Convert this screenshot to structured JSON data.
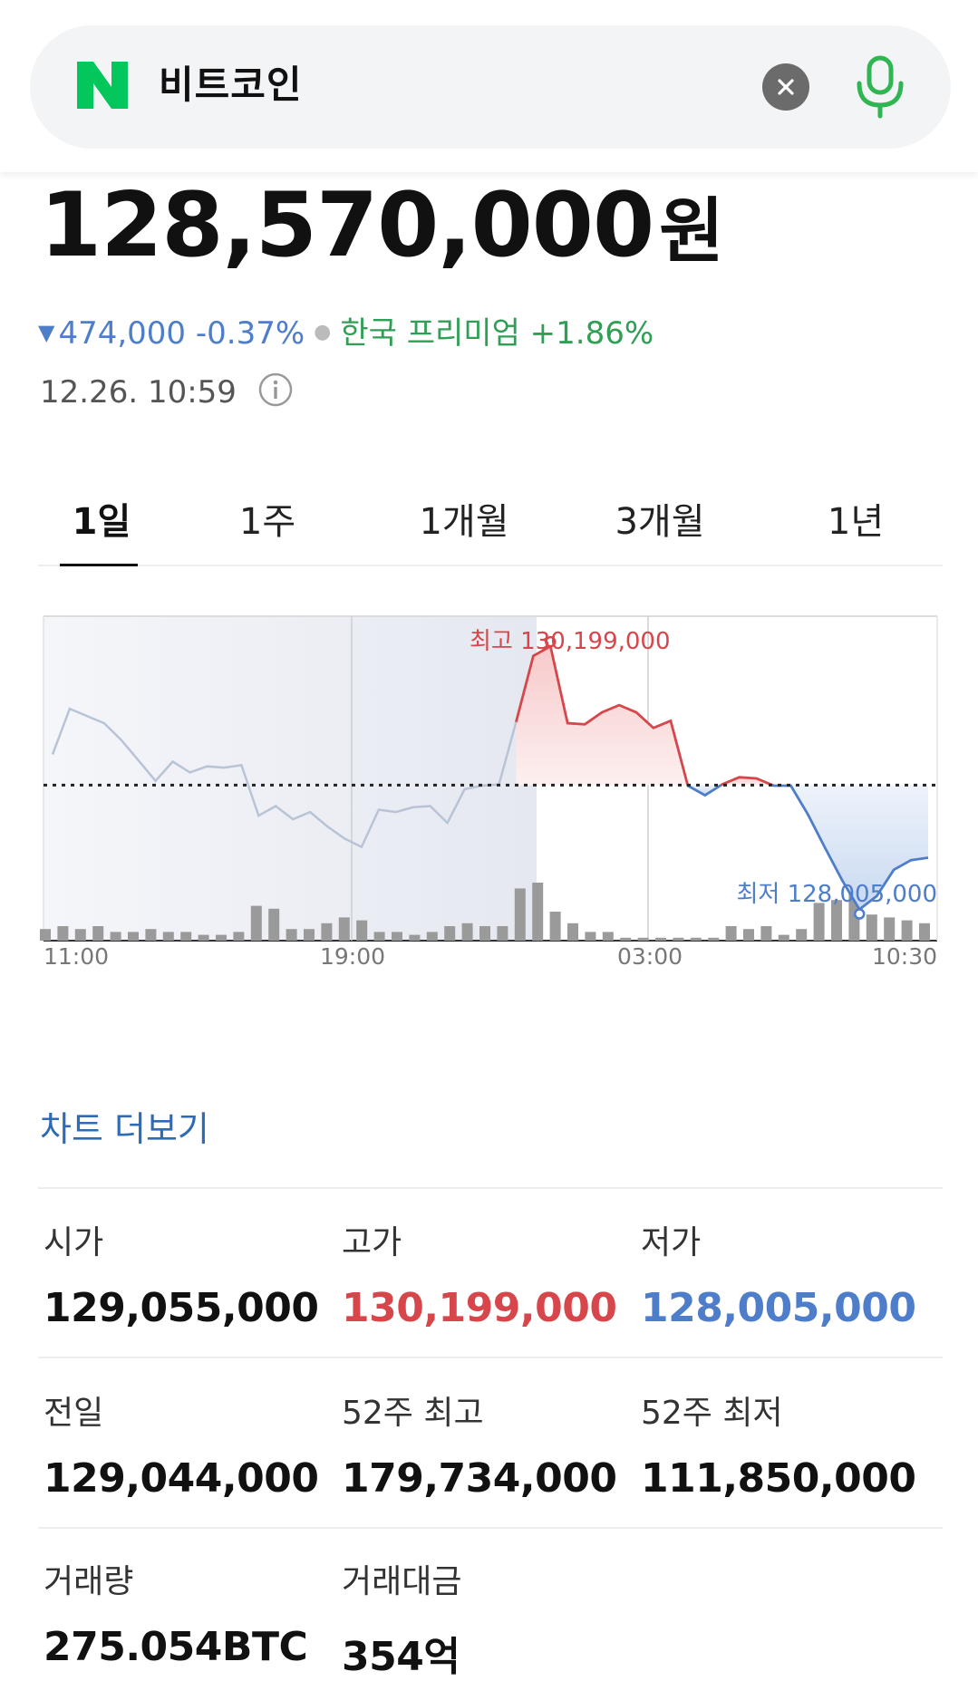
{
  "search": {
    "query": "비트코인",
    "logo_letter": "N",
    "logo_color": "#03c75a",
    "clear_icon": "close-icon",
    "voice_icon": "microphone-icon"
  },
  "quote": {
    "price": "128,570,000",
    "unit": "원",
    "change_symbol": "▼",
    "change": "474,000 -0.37%",
    "premium": "한국 프리미엄 +1.86%",
    "timestamp": "12.26. 10:59",
    "down_color": "#4e7dc9",
    "up_color": "#d6464a",
    "premium_color": "#2f9f55"
  },
  "tabs": [
    {
      "label": "1일",
      "active": true
    },
    {
      "label": "1주",
      "active": false
    },
    {
      "label": "1개월",
      "active": false
    },
    {
      "label": "3개월",
      "active": false
    },
    {
      "label": "1년",
      "active": false
    }
  ],
  "chart_data": {
    "type": "line",
    "x_ticks": [
      "11:00",
      "19:00",
      "03:00",
      "10:30"
    ],
    "prev_close_line": 129044000,
    "ylim": [
      127750000,
      130450000
    ],
    "annotations": {
      "high_label": "최고 130,199,000",
      "high_value": 130199000,
      "low_label": "최저 128,005,000",
      "low_value": 128005000
    },
    "price_series": [
      129300000,
      129680000,
      129620000,
      129560000,
      129420000,
      129250000,
      129080000,
      129240000,
      129150000,
      129200000,
      129190000,
      129210000,
      128790000,
      128870000,
      128760000,
      128820000,
      128700000,
      128600000,
      128530000,
      128840000,
      128820000,
      128860000,
      128870000,
      128730000,
      129010000,
      129040000,
      129050000,
      129570000,
      130120000,
      130200000,
      129560000,
      129550000,
      129650000,
      129710000,
      129650000,
      129520000,
      129580000,
      129040000,
      128960000,
      129050000,
      129110000,
      129100000,
      129040000,
      129040000,
      128800000,
      128520000,
      128250000,
      128010000,
      128120000,
      128340000,
      128420000,
      128440000
    ],
    "volume_series": [
      4,
      5,
      4,
      5,
      3,
      3,
      4,
      3,
      3,
      2,
      2,
      3,
      12,
      11,
      4,
      4,
      6,
      8,
      7,
      3,
      3,
      2,
      3,
      5,
      6,
      5,
      5,
      18,
      20,
      10,
      6,
      3,
      3,
      1,
      1,
      1,
      1,
      1,
      1,
      5,
      4,
      5,
      2,
      4,
      13,
      14,
      18,
      9,
      8,
      7,
      6
    ],
    "colors": {
      "above": "#d6464a",
      "below": "#4e7dc9",
      "before_session": "#b9c3d6"
    }
  },
  "more_link": "차트 더보기",
  "stats": [
    {
      "label": "시가",
      "value": "129,055,000",
      "tone": ""
    },
    {
      "label": "고가",
      "value": "130,199,000",
      "tone": "red"
    },
    {
      "label": "저가",
      "value": "128,005,000",
      "tone": "blue"
    },
    {
      "label": "전일",
      "value": "129,044,000",
      "tone": ""
    },
    {
      "label": "52주 최고",
      "value": "179,734,000",
      "tone": ""
    },
    {
      "label": "52주 최저",
      "value": "111,850,000",
      "tone": ""
    },
    {
      "label": "거래량",
      "value": "275.054BTC",
      "tone": ""
    },
    {
      "label": "거래대금",
      "value": "354억",
      "tone": ""
    }
  ]
}
